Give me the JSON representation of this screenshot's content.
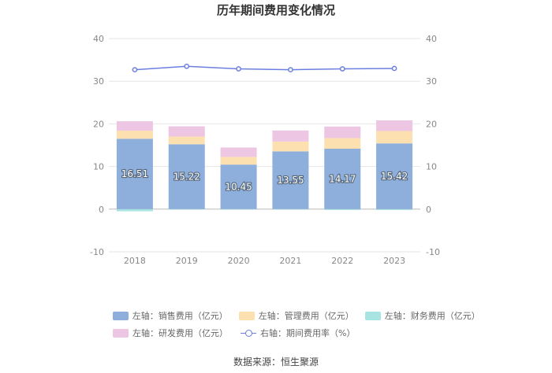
{
  "chart_data": {
    "type": "bar",
    "title": "历年期间费用变化情况",
    "categories": [
      "2018",
      "2019",
      "2020",
      "2021",
      "2022",
      "2023"
    ],
    "left_axis": {
      "min": -10,
      "max": 40,
      "ticks": [
        -10,
        0,
        10,
        20,
        30,
        40
      ]
    },
    "right_axis": {
      "min": -10,
      "max": 40,
      "ticks": [
        -10,
        0,
        10,
        20,
        30,
        40
      ]
    },
    "series": [
      {
        "name": "左轴：销售费用（亿元）",
        "type": "bar",
        "axis": "left",
        "color": "#8eaedb",
        "values": [
          16.51,
          15.22,
          10.45,
          13.55,
          14.17,
          15.42
        ],
        "show_labels": true
      },
      {
        "name": "左轴：管理费用（亿元）",
        "type": "bar",
        "axis": "left",
        "color": "#fde0b0",
        "values": [
          1.9,
          1.8,
          1.8,
          2.3,
          2.5,
          2.9
        ]
      },
      {
        "name": "左轴：财务费用（亿元）",
        "type": "bar",
        "axis": "left",
        "color": "#a8e4e2",
        "values": [
          -0.5,
          -0.1,
          -0.1,
          -0.1,
          -0.2,
          -0.2
        ]
      },
      {
        "name": "左轴：研发费用（亿元）",
        "type": "bar",
        "axis": "left",
        "color": "#ecc6e2",
        "values": [
          2.2,
          2.4,
          2.2,
          2.6,
          2.7,
          2.5
        ]
      },
      {
        "name": "右轴：期间费用率（%）",
        "type": "line",
        "axis": "right",
        "color": "#6b7fe0",
        "values": [
          32.7,
          33.5,
          32.9,
          32.7,
          32.9,
          33.0
        ]
      }
    ]
  },
  "source": "数据来源：恒生聚源"
}
